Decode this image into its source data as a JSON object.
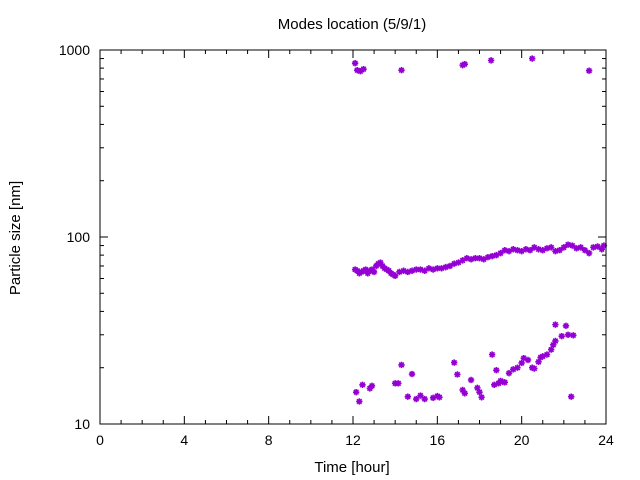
{
  "chart_data": {
    "type": "scatter",
    "title": "Modes location (5/9/1)",
    "xlabel": "Time [hour]",
    "ylabel": "Particle size [nm]",
    "xlim": [
      0,
      24
    ],
    "ylim": [
      10,
      1000
    ],
    "yscale": "log",
    "grid": false,
    "legend": "none",
    "marker_color": "#9400d3",
    "x_ticks": [
      {
        "value": 0,
        "label": "0"
      },
      {
        "value": 4,
        "label": "4"
      },
      {
        "value": 8,
        "label": "8"
      },
      {
        "value": 12,
        "label": "12"
      },
      {
        "value": 16,
        "label": "16"
      },
      {
        "value": 20,
        "label": "20"
      },
      {
        "value": 24,
        "label": "24"
      }
    ],
    "y_ticks": [
      {
        "value": 10,
        "label": "10"
      },
      {
        "value": 100,
        "label": "100"
      },
      {
        "value": 1000,
        "label": "1000"
      }
    ],
    "points": [
      [
        12.1,
        850
      ],
      [
        12.2,
        780
      ],
      [
        12.35,
        770
      ],
      [
        12.5,
        790
      ],
      [
        14.3,
        780
      ],
      [
        17.2,
        830
      ],
      [
        17.3,
        840
      ],
      [
        18.55,
        880
      ],
      [
        20.5,
        900
      ],
      [
        23.2,
        775
      ],
      [
        12.1,
        67
      ],
      [
        12.2,
        66
      ],
      [
        12.3,
        64
      ],
      [
        12.4,
        65
      ],
      [
        12.5,
        66
      ],
      [
        12.6,
        67
      ],
      [
        12.7,
        64
      ],
      [
        12.8,
        66
      ],
      [
        12.9,
        67
      ],
      [
        13.0,
        65
      ],
      [
        13.1,
        70
      ],
      [
        13.2,
        72
      ],
      [
        13.3,
        73
      ],
      [
        13.4,
        70
      ],
      [
        13.5,
        68
      ],
      [
        13.6,
        67
      ],
      [
        13.7,
        66
      ],
      [
        13.8,
        64
      ],
      [
        13.9,
        63
      ],
      [
        14.0,
        62
      ],
      [
        14.2,
        65
      ],
      [
        14.4,
        66
      ],
      [
        14.6,
        65
      ],
      [
        14.8,
        66
      ],
      [
        15.0,
        67
      ],
      [
        15.2,
        67
      ],
      [
        15.4,
        66
      ],
      [
        15.6,
        68
      ],
      [
        15.8,
        67
      ],
      [
        16.0,
        68
      ],
      [
        16.2,
        68
      ],
      [
        16.4,
        69
      ],
      [
        16.6,
        70
      ],
      [
        16.8,
        72
      ],
      [
        17.0,
        73
      ],
      [
        17.2,
        75
      ],
      [
        17.4,
        77
      ],
      [
        17.6,
        76
      ],
      [
        17.8,
        77
      ],
      [
        18.0,
        77
      ],
      [
        18.2,
        76
      ],
      [
        18.4,
        78
      ],
      [
        18.6,
        79
      ],
      [
        18.8,
        80
      ],
      [
        19.0,
        82
      ],
      [
        19.2,
        85
      ],
      [
        19.4,
        84
      ],
      [
        19.6,
        86
      ],
      [
        19.8,
        85
      ],
      [
        20.0,
        84
      ],
      [
        20.2,
        86
      ],
      [
        20.4,
        85
      ],
      [
        20.6,
        88
      ],
      [
        20.8,
        86
      ],
      [
        21.0,
        85
      ],
      [
        21.2,
        87
      ],
      [
        21.4,
        88
      ],
      [
        21.6,
        84
      ],
      [
        21.8,
        85
      ],
      [
        22.0,
        88
      ],
      [
        22.2,
        91
      ],
      [
        22.4,
        90
      ],
      [
        22.6,
        87
      ],
      [
        22.8,
        88
      ],
      [
        23.0,
        85
      ],
      [
        23.2,
        82
      ],
      [
        23.4,
        88
      ],
      [
        23.6,
        89
      ],
      [
        23.8,
        86
      ],
      [
        23.9,
        90
      ],
      [
        12.15,
        14.8
      ],
      [
        12.3,
        13.2
      ],
      [
        12.45,
        16.2
      ],
      [
        12.8,
        15.5
      ],
      [
        12.9,
        16.0
      ],
      [
        14.0,
        16.5
      ],
      [
        14.15,
        16.5
      ],
      [
        14.3,
        20.7
      ],
      [
        14.6,
        14.0
      ],
      [
        14.8,
        18.5
      ],
      [
        15.0,
        13.6
      ],
      [
        15.2,
        14.2
      ],
      [
        15.4,
        13.6
      ],
      [
        15.8,
        13.8
      ],
      [
        16.0,
        14.1
      ],
      [
        16.1,
        13.9
      ],
      [
        16.8,
        21.3
      ],
      [
        16.95,
        18.4
      ],
      [
        17.2,
        15.2
      ],
      [
        17.3,
        14.6
      ],
      [
        17.6,
        17.2
      ],
      [
        17.9,
        15.6
      ],
      [
        18.0,
        14.8
      ],
      [
        18.1,
        13.9
      ],
      [
        18.6,
        23.5
      ],
      [
        18.7,
        16.2
      ],
      [
        18.8,
        19.4
      ],
      [
        18.9,
        16.5
      ],
      [
        19.0,
        17.0
      ],
      [
        19.1,
        16.8
      ],
      [
        19.2,
        16.7
      ],
      [
        19.4,
        18.7
      ],
      [
        19.6,
        19.6
      ],
      [
        19.8,
        20.0
      ],
      [
        20.0,
        21.2
      ],
      [
        20.1,
        22.5
      ],
      [
        20.3,
        22.0
      ],
      [
        20.5,
        20.0
      ],
      [
        20.6,
        19.8
      ],
      [
        20.8,
        21.5
      ],
      [
        20.9,
        22.7
      ],
      [
        21.0,
        23.0
      ],
      [
        21.2,
        23.5
      ],
      [
        21.4,
        25.0
      ],
      [
        21.5,
        26.5
      ],
      [
        21.6,
        27.8
      ],
      [
        21.6,
        34.0
      ],
      [
        21.9,
        29.5
      ],
      [
        22.1,
        33.5
      ],
      [
        22.2,
        30.0
      ],
      [
        22.35,
        14.0
      ],
      [
        22.45,
        29.8
      ]
    ]
  }
}
